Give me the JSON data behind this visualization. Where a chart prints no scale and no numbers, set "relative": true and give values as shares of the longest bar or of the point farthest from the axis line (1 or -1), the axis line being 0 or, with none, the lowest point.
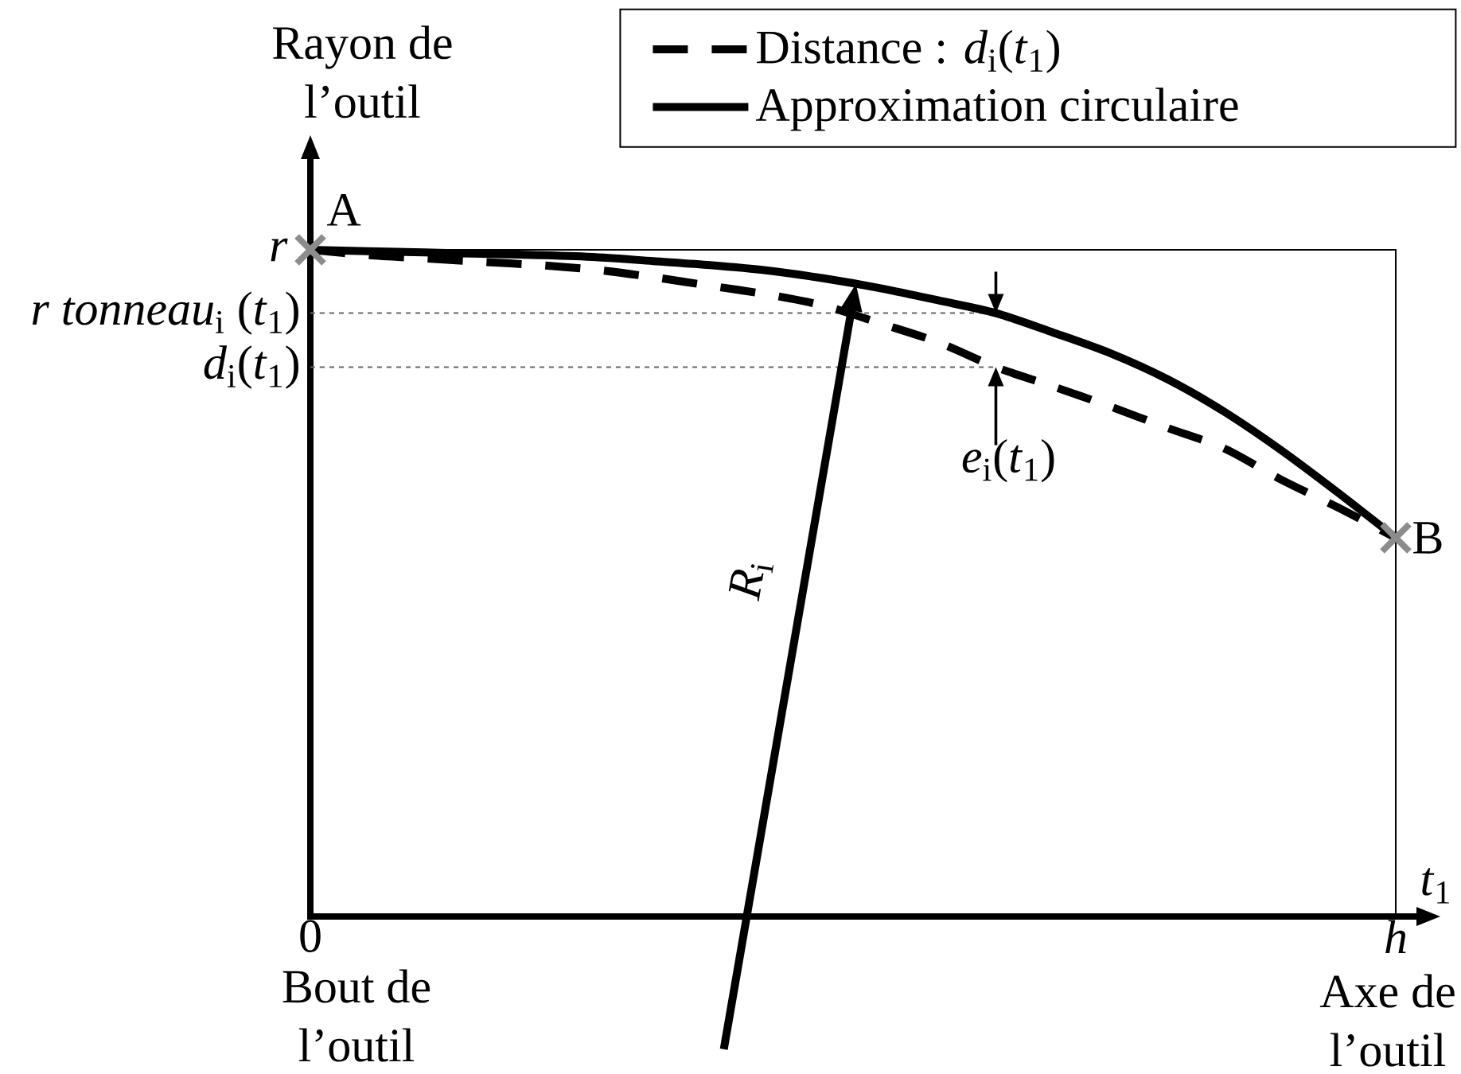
{
  "chart_data": {
    "type": "line",
    "relative": true,
    "xlabel": "*t*$_{1}$",
    "ylabel": "Rayon de l’outil",
    "categories": [
      "0",
      null,
      null,
      null,
      null,
      null,
      null,
      null,
      null,
      null,
      null,
      null,
      null,
      null,
      null,
      null,
      null,
      null,
      null,
      "*h*"
    ],
    "legend": "top right",
    "series": [
      {
        "line_style": "dotted",
        "color": "#666666",
        "values": [
          0.905,
          0.905,
          0.905,
          0.905,
          0.905,
          0.905,
          0.905,
          0.905,
          0.905,
          0.905,
          0.905,
          0.905,
          0.905,
          null,
          null,
          null,
          null,
          null,
          null,
          null
        ]
      },
      {
        "line_style": "dotted",
        "color": "#666666",
        "values": [
          0.824,
          0.824,
          0.824,
          0.824,
          0.824,
          0.824,
          0.824,
          0.824,
          0.824,
          0.824,
          0.824,
          0.824,
          0.824,
          null,
          null,
          null,
          null,
          null,
          null,
          null
        ]
      },
      {
        "name": "Distance : *d*$_{i}$(*t*$_{1}$)",
        "line_style": "dashed",
        "color": "#000000",
        "values": [
          1,
          0.992,
          0.987,
          0.982,
          0.977,
          0.97,
          0.959,
          0.946,
          0.933,
          0.916,
          0.889,
          0.861,
          0.824,
          0.795,
          0.765,
          0.733,
          0.702,
          0.655,
          0.613,
          0.568
        ]
      },
      {
        "name": "Approximation circulaire",
        "line_style": "solid",
        "color": "#000000",
        "values": [
          1,
          0.998,
          0.996,
          0.994,
          0.992,
          0.989,
          0.983,
          0.977,
          0.969,
          0.957,
          0.942,
          0.924,
          0.905,
          0.876,
          0.845,
          0.806,
          0.757,
          0.699,
          0.635,
          0.568
        ]
      },
      {
        "type": "scatter",
        "marker": "cross",
        "color": "#8c8c8c",
        "values": [
          1,
          null,
          null,
          null,
          null,
          null,
          null,
          null,
          null,
          null,
          null,
          null,
          null,
          null,
          null,
          null,
          null,
          null,
          null,
          0.568
        ]
      }
    ],
    "annotations": [
      "*r*",
      "*r tonneau*$_{i}$ (*t*$_{1}$)",
      "*d*$_{i}$(*t*$_{1}$)",
      "A",
      "B",
      "*e*$_{i}$(*t*$_{1}$)",
      "*R*$_{i}$",
      "Bout de l’outil",
      "Axe de l’outil"
    ]
  }
}
